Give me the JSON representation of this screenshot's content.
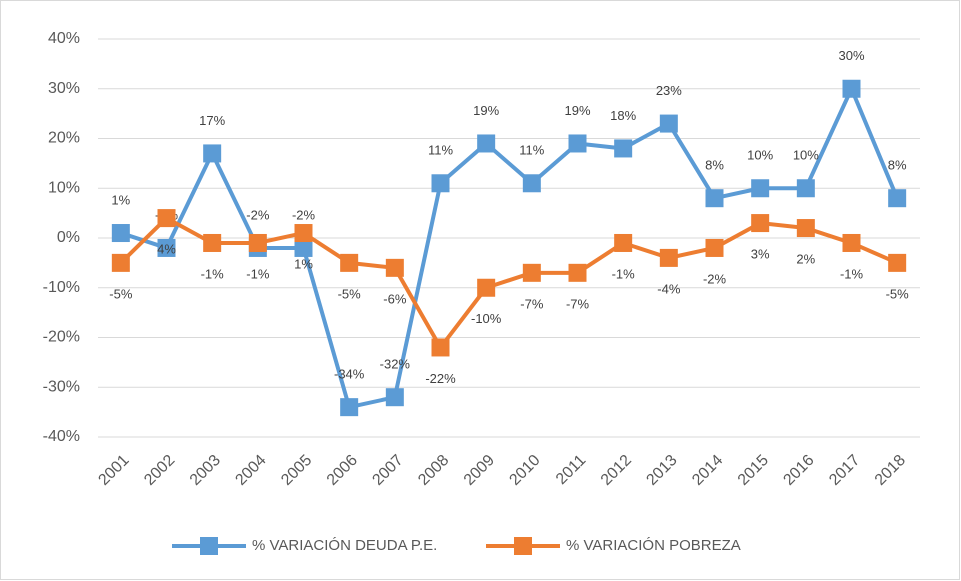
{
  "chart_data": {
    "type": "line",
    "categories": [
      "2001",
      "2002",
      "2003",
      "2004",
      "2005",
      "2006",
      "2007",
      "2008",
      "2009",
      "2010",
      "2011",
      "2012",
      "2013",
      "2014",
      "2015",
      "2016",
      "2017",
      "2018"
    ],
    "series": [
      {
        "name": "% VARIACIÓN DEUDA P.E.",
        "color": "#5b9bd5",
        "values": [
          1,
          -2,
          17,
          -2,
          -2,
          -34,
          -32,
          11,
          19,
          11,
          19,
          18,
          23,
          8,
          10,
          10,
          30,
          8
        ],
        "value_labels": [
          "1%",
          "-2%",
          "17%",
          "-2%",
          "-2%",
          "-34%",
          "-32%",
          "11%",
          "19%",
          "11%",
          "19%",
          "18%",
          "23%",
          "8%",
          "10%",
          "10%",
          "30%",
          "8%"
        ]
      },
      {
        "name": "% VARIACIÓN POBREZA",
        "color": "#ed7d31",
        "values": [
          -5,
          4,
          -1,
          -1,
          1,
          -5,
          -6,
          -22,
          -10,
          -7,
          -7,
          -1,
          -4,
          -2,
          3,
          2,
          -1,
          -5
        ],
        "value_labels": [
          "-5%",
          "4%",
          "-1%",
          "-1%",
          "1%",
          "-5%",
          "-6%",
          "-22%",
          "-10%",
          "-7%",
          "-7%",
          "-1%",
          "-4%",
          "-2%",
          "3%",
          "2%",
          "-1%",
          "-5%"
        ]
      }
    ],
    "ylim": [
      -40,
      40
    ],
    "yticks": [
      {
        "value": -40,
        "label": "-40%"
      },
      {
        "value": -30,
        "label": "-30%"
      },
      {
        "value": -20,
        "label": "-20%"
      },
      {
        "value": -10,
        "label": "-10%"
      },
      {
        "value": 0,
        "label": "0%"
      },
      {
        "value": 10,
        "label": "10%"
      },
      {
        "value": 20,
        "label": "20%"
      },
      {
        "value": 30,
        "label": "30%"
      },
      {
        "value": 40,
        "label": "40%"
      }
    ],
    "grid": true,
    "legend": "bottom"
  }
}
